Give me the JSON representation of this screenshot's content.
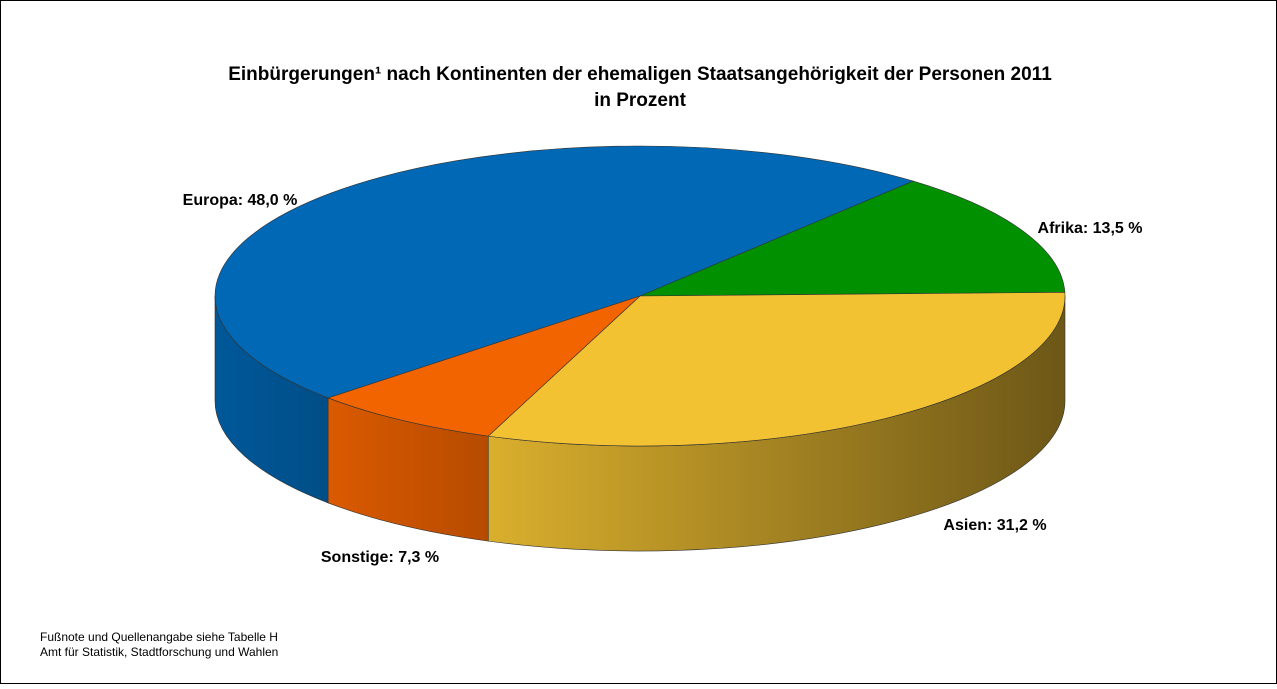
{
  "chart_data": {
    "type": "pie3d",
    "title": "Einbürgerungen¹ nach Kontinenten der ehemaligen Staatsangehörigkeit der Personen 2011",
    "subtitle": "in Prozent",
    "values": [
      48.0,
      13.5,
      31.2,
      7.3
    ],
    "value_labels": [
      "Europa: 48,0 %",
      "Afrika: 13,5 %",
      "Asien: 31,2 %",
      "Sonstige: 7,3 %"
    ],
    "colors": [
      "#0068b4",
      "#009000",
      "#f2c232",
      "#f26400"
    ],
    "footnotes": [
      "Fußnote und Quellenangabe siehe Tabelle H",
      "Amt für Statistik, Stadtforschung und Wahlen"
    ]
  }
}
